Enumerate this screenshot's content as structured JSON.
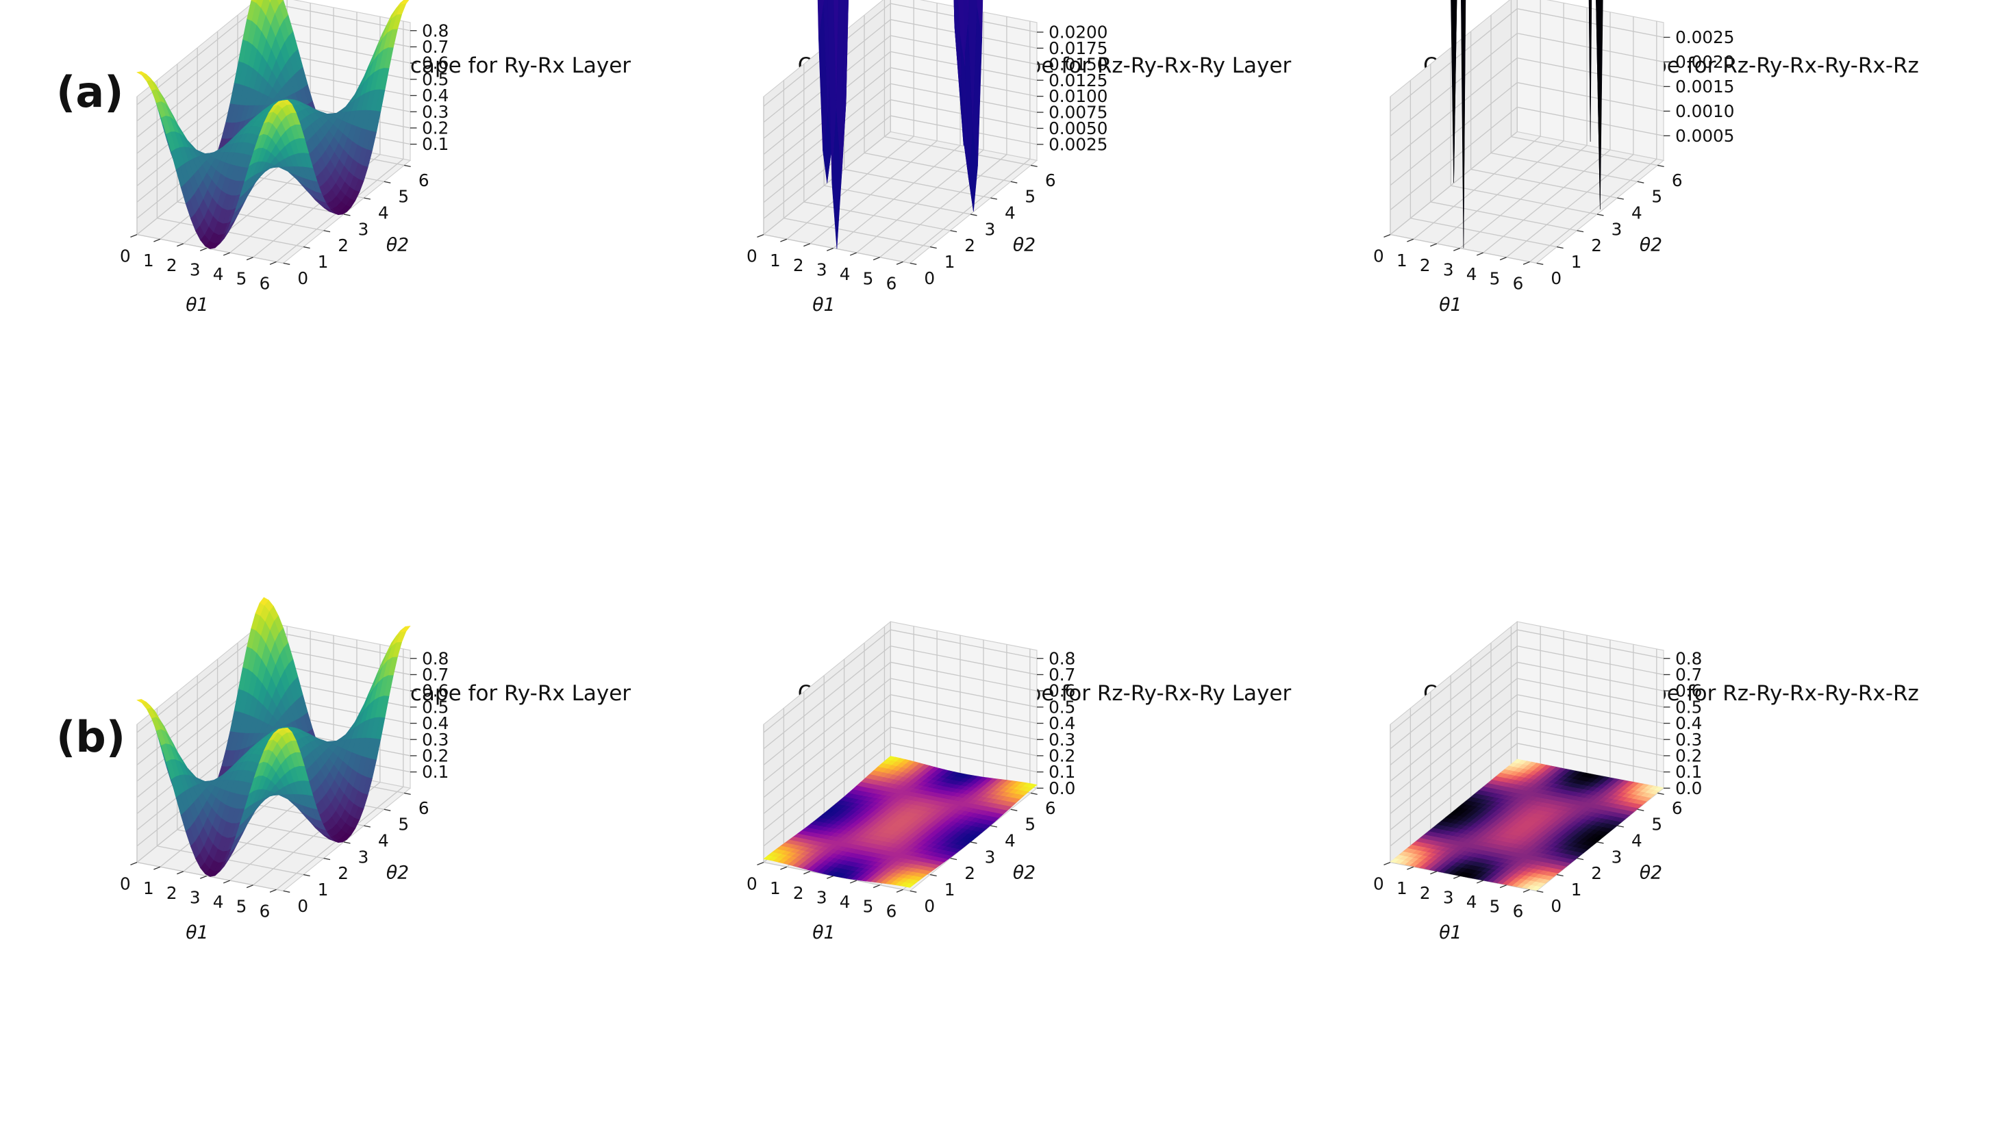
{
  "figure": {
    "row_labels": [
      "(a)",
      "(b)"
    ]
  },
  "chart_data": [
    {
      "type": "surface3d",
      "row": "a",
      "title": "Optimization Landscape for Ry-Rx Layer",
      "xlabel": "θ1",
      "ylabel": "θ2",
      "xlim": [
        0,
        6.3
      ],
      "ylim": [
        0,
        6.3
      ],
      "x_ticks": [
        "0",
        "1",
        "2",
        "3",
        "4",
        "5",
        "6"
      ],
      "y_ticks": [
        "0",
        "1",
        "2",
        "3",
        "4",
        "5",
        "6"
      ],
      "zlim": [
        0,
        0.85
      ],
      "z_ticks": [
        "0.1",
        "0.2",
        "0.3",
        "0.4",
        "0.5",
        "0.6",
        "0.7",
        "0.8"
      ],
      "z_tick_values": [
        0.1,
        0.2,
        0.3,
        0.4,
        0.5,
        0.6,
        0.7,
        0.8
      ],
      "z_max": 0.84,
      "colormap": "viridis",
      "grid": true
    },
    {
      "type": "surface3d",
      "row": "a",
      "title": "Optimization Landscape for Rz-Ry-Rx-Ry Layer",
      "xlabel": "θ1",
      "ylabel": "θ2",
      "xlim": [
        0,
        6.3
      ],
      "ylim": [
        0,
        6.3
      ],
      "x_ticks": [
        "0",
        "1",
        "2",
        "3",
        "4",
        "5",
        "6"
      ],
      "y_ticks": [
        "0",
        "1",
        "2",
        "3",
        "4",
        "5",
        "6"
      ],
      "zlim": [
        0,
        0.0215
      ],
      "z_ticks": [
        "0.0025",
        "0.0050",
        "0.0075",
        "0.0100",
        "0.0125",
        "0.0150",
        "0.0175",
        "0.0200"
      ],
      "z_tick_values": [
        0.0025,
        0.005,
        0.0075,
        0.01,
        0.0125,
        0.015,
        0.0175,
        0.02
      ],
      "z_max": 0.021,
      "colormap": "plasma",
      "grid": true
    },
    {
      "type": "surface3d",
      "row": "a",
      "title": "Optimization Landscape for Rz-Ry-Rx-Ry-Rx-Rz",
      "xlabel": "θ1",
      "ylabel": "θ2",
      "xlim": [
        0,
        6.3
      ],
      "ylim": [
        0,
        6.3
      ],
      "x_ticks": [
        "0",
        "1",
        "2",
        "3",
        "4",
        "5",
        "6"
      ],
      "y_ticks": [
        "0",
        "1",
        "2",
        "3",
        "4",
        "5",
        "6"
      ],
      "zlim": [
        0,
        0.0028
      ],
      "z_ticks": [
        "0.0005",
        "0.0010",
        "0.0015",
        "0.0020",
        "0.0025"
      ],
      "z_tick_values": [
        0.0005,
        0.001,
        0.0015,
        0.002,
        0.0025
      ],
      "z_max": 0.0027,
      "colormap": "magma",
      "grid": true
    },
    {
      "type": "surface3d",
      "row": "b",
      "title": "Optimization Landscape for Ry-Rx Layer",
      "xlabel": "θ1",
      "ylabel": "θ2",
      "xlim": [
        0,
        6.3
      ],
      "ylim": [
        0,
        6.3
      ],
      "x_ticks": [
        "0",
        "1",
        "2",
        "3",
        "4",
        "5",
        "6"
      ],
      "y_ticks": [
        "0",
        "1",
        "2",
        "3",
        "4",
        "5",
        "6"
      ],
      "zlim": [
        0,
        0.85
      ],
      "z_ticks": [
        "0.1",
        "0.2",
        "0.3",
        "0.4",
        "0.5",
        "0.6",
        "0.7",
        "0.8"
      ],
      "z_tick_values": [
        0.1,
        0.2,
        0.3,
        0.4,
        0.5,
        0.6,
        0.7,
        0.8
      ],
      "z_max": 0.84,
      "colormap": "viridis",
      "grid": true
    },
    {
      "type": "surface3d",
      "row": "b",
      "title": "Optimization Landscape for Rz-Ry-Rx-Ry Layer",
      "xlabel": "θ1",
      "ylabel": "θ2",
      "xlim": [
        0,
        6.3
      ],
      "ylim": [
        0,
        6.3
      ],
      "x_ticks": [
        "0",
        "1",
        "2",
        "3",
        "4",
        "5",
        "6"
      ],
      "y_ticks": [
        "0",
        "1",
        "2",
        "3",
        "4",
        "5",
        "6"
      ],
      "zlim": [
        0,
        0.85
      ],
      "z_ticks": [
        "0.0",
        "0.1",
        "0.2",
        "0.3",
        "0.4",
        "0.5",
        "0.6",
        "0.7",
        "0.8"
      ],
      "z_tick_values": [
        0,
        0.1,
        0.2,
        0.3,
        0.4,
        0.5,
        0.6,
        0.7,
        0.8
      ],
      "z_max": 0.021,
      "colormap": "plasma",
      "grid": true
    },
    {
      "type": "surface3d",
      "row": "b",
      "title": "Optimization Landscape for Rz-Ry-Rx-Ry-Rx-Rz",
      "xlabel": "θ1",
      "ylabel": "θ2",
      "xlim": [
        0,
        6.3
      ],
      "ylim": [
        0,
        6.3
      ],
      "x_ticks": [
        "0",
        "1",
        "2",
        "3",
        "4",
        "5",
        "6"
      ],
      "y_ticks": [
        "0",
        "1",
        "2",
        "3",
        "4",
        "5",
        "6"
      ],
      "zlim": [
        0,
        0.85
      ],
      "z_ticks": [
        "0.0",
        "0.1",
        "0.2",
        "0.3",
        "0.4",
        "0.5",
        "0.6",
        "0.7",
        "0.8"
      ],
      "z_tick_values": [
        0,
        0.1,
        0.2,
        0.3,
        0.4,
        0.5,
        0.6,
        0.7,
        0.8
      ],
      "z_max": 0.0027,
      "colormap": "magma",
      "grid": true
    }
  ]
}
